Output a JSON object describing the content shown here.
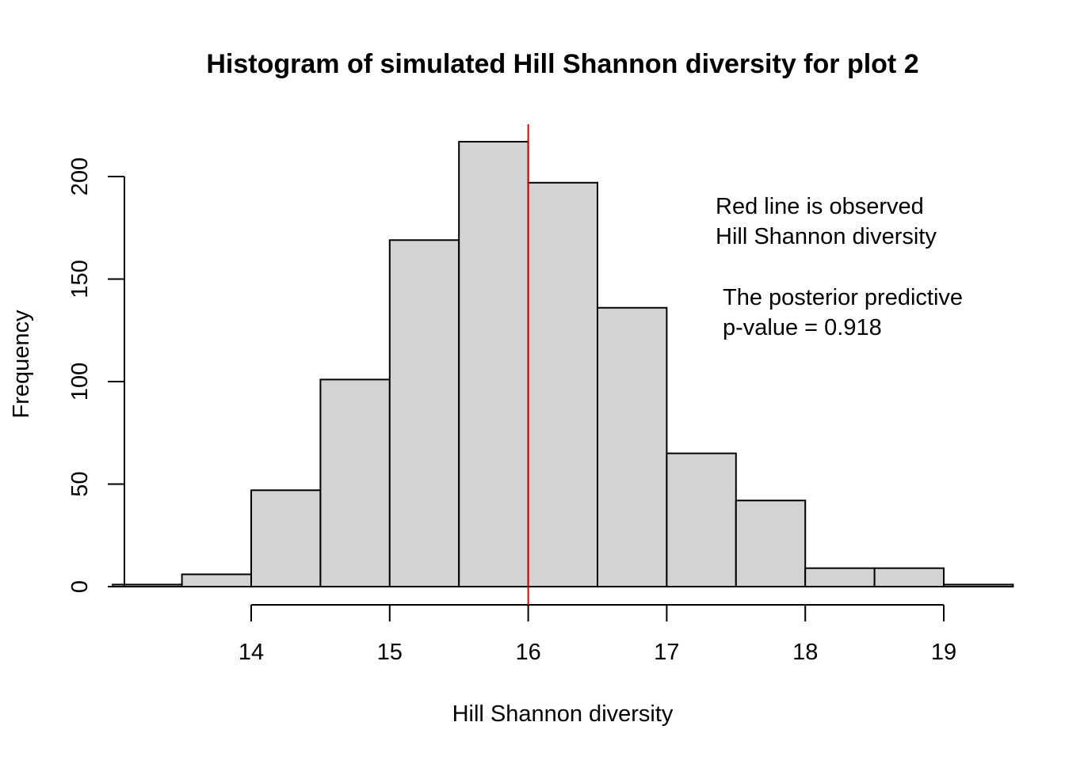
{
  "chart_data": {
    "type": "bar",
    "title": "Histogram of simulated Hill Shannon diversity for plot 2",
    "xlabel": "Hill Shannon diversity",
    "ylabel": "Frequency",
    "bins": [
      {
        "start": 13.0,
        "end": 13.5,
        "count": 1
      },
      {
        "start": 13.5,
        "end": 14.0,
        "count": 6
      },
      {
        "start": 14.0,
        "end": 14.5,
        "count": 47
      },
      {
        "start": 14.5,
        "end": 15.0,
        "count": 101
      },
      {
        "start": 15.0,
        "end": 15.5,
        "count": 169
      },
      {
        "start": 15.5,
        "end": 16.0,
        "count": 217
      },
      {
        "start": 16.0,
        "end": 16.5,
        "count": 197
      },
      {
        "start": 16.5,
        "end": 17.0,
        "count": 136
      },
      {
        "start": 17.0,
        "end": 17.5,
        "count": 65
      },
      {
        "start": 17.5,
        "end": 18.0,
        "count": 42
      },
      {
        "start": 18.0,
        "end": 18.5,
        "count": 9
      },
      {
        "start": 18.5,
        "end": 19.0,
        "count": 9
      },
      {
        "start": 19.0,
        "end": 19.5,
        "count": 1
      }
    ],
    "x_ticks": [
      "14",
      "15",
      "16",
      "17",
      "18",
      "19"
    ],
    "y_ticks": [
      "0",
      "50",
      "100",
      "150",
      "200"
    ],
    "ylim": [
      0,
      230
    ],
    "observed_value": 16.0,
    "colors": {
      "bar_fill": "#d3d3d3",
      "bar_stroke": "#000000",
      "observed_line": "#dd0000"
    },
    "annotations": {
      "observed_line_1": "Red line is observed",
      "observed_line_2": "Hill Shannon diversity",
      "pvalue_line_1": "The posterior predictive",
      "pvalue_line_2": "p-value = 0.918"
    }
  }
}
